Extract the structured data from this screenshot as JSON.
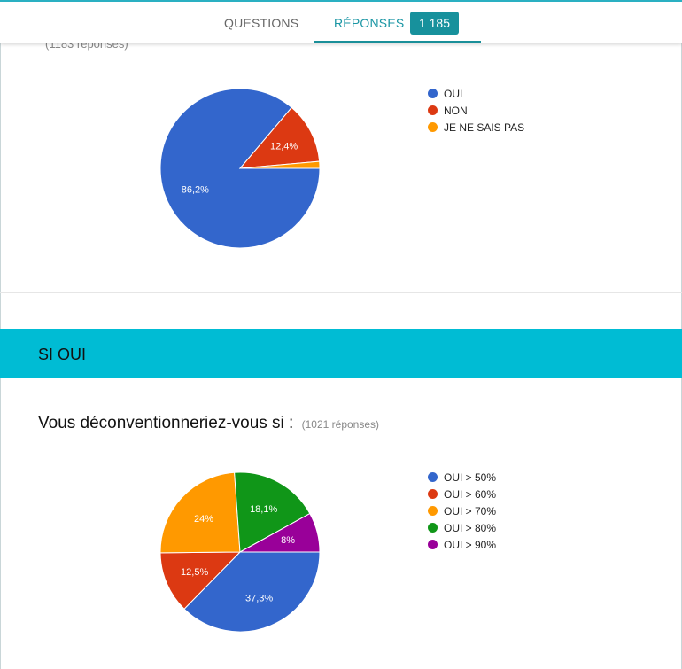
{
  "header": {
    "tabs": [
      {
        "label": "QUESTIONS"
      },
      {
        "label": "RÉPONSES"
      }
    ],
    "badge": "1 185"
  },
  "section1": {
    "response_count": "(1183 réponses)"
  },
  "section2": {
    "band_title": "SI OUI",
    "question": "Vous déconventionneriez-vous si :",
    "response_count": "(1021 réponses)"
  },
  "chart_data": [
    {
      "type": "pie",
      "categories": [
        "OUI",
        "NON",
        "JE NE SAIS PAS"
      ],
      "values": [
        86.2,
        12.4,
        1.4
      ],
      "labels": [
        "86,2%",
        "12,4%",
        ""
      ],
      "colors": [
        "#3366cc",
        "#dc3912",
        "#ff9900"
      ],
      "legend": "right"
    },
    {
      "type": "pie",
      "categories": [
        "OUI > 50%",
        "OUI > 60%",
        "OUI > 70%",
        "OUI > 80%",
        "OUI > 90%"
      ],
      "values": [
        37.3,
        12.5,
        24,
        18.1,
        8
      ],
      "labels": [
        "37,3%",
        "12,5%",
        "24%",
        "18,1%",
        "8%"
      ],
      "colors": [
        "#3366cc",
        "#dc3912",
        "#ff9900",
        "#109618",
        "#990099"
      ],
      "legend": "right"
    }
  ]
}
